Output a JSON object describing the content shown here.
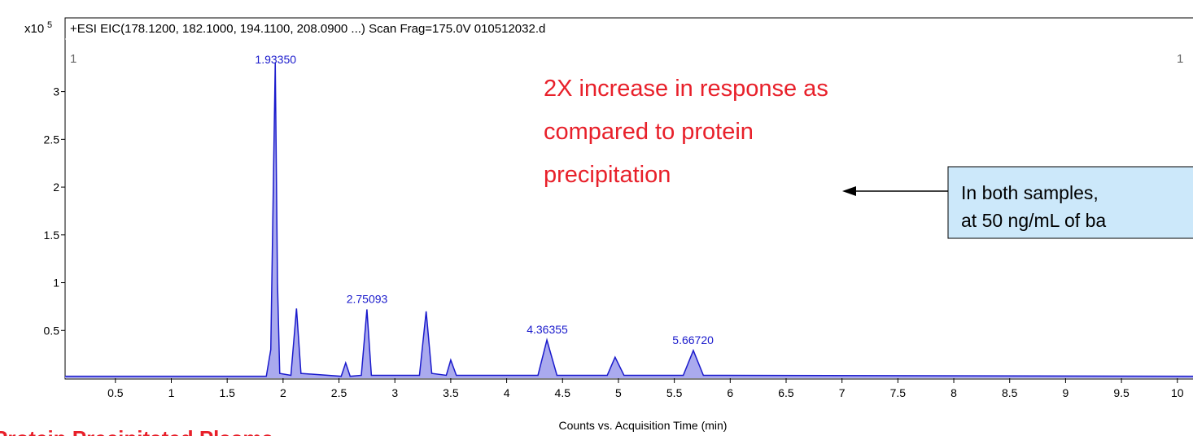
{
  "chart_data": {
    "type": "line",
    "header": "+ESI EIC(178.1200, 182.1000, 194.1100, 208.0900 ...) Scan Frag=175.0V 010512032.d",
    "y_multiplier": "x10",
    "y_exponent": "5",
    "panel_marks": [
      "1",
      "1"
    ],
    "xlabel": "Counts vs. Acquisition Time (min)",
    "x": [
      0.05,
      1.0,
      1.85,
      1.89,
      1.91,
      1.93,
      1.95,
      1.97,
      2.07,
      2.12,
      2.16,
      2.52,
      2.56,
      2.6,
      2.7,
      2.75,
      2.79,
      3.22,
      3.28,
      3.33,
      3.46,
      3.5,
      3.55,
      4.28,
      4.36,
      4.45,
      4.9,
      4.97,
      5.05,
      5.58,
      5.67,
      5.76,
      10.14
    ],
    "series": [
      {
        "name": "EIC",
        "color": "#1a1acc",
        "fill": "#aaaaee",
        "values": [
          0.02,
          0.02,
          0.02,
          0.3,
          1.8,
          3.3,
          1.0,
          0.05,
          0.03,
          0.73,
          0.05,
          0.02,
          0.16,
          0.02,
          0.03,
          0.72,
          0.03,
          0.03,
          0.7,
          0.05,
          0.03,
          0.19,
          0.03,
          0.03,
          0.4,
          0.03,
          0.03,
          0.22,
          0.03,
          0.03,
          0.29,
          0.03,
          0.02
        ]
      }
    ],
    "peak_labels": [
      {
        "value": 1.9335,
        "label": "1.93350"
      },
      {
        "value": 2.75093,
        "label": "2.75093"
      },
      {
        "value": 4.36355,
        "label": "4.36355"
      },
      {
        "value": 5.6672,
        "label": "5.66720"
      }
    ],
    "xlim": [
      0.05,
      10.14
    ],
    "xticks": [
      0.5,
      1,
      1.5,
      2,
      2.5,
      3,
      3.5,
      4,
      4.5,
      5,
      5.5,
      6,
      6.5,
      7,
      7.5,
      8,
      8.5,
      9,
      9.5,
      10
    ],
    "ylim": [
      0,
      3.55
    ],
    "yticks": [
      0.5,
      1,
      1.5,
      2,
      2.5,
      3
    ],
    "annotation": [
      "2X increase in response as",
      "compared to protein",
      "precipitation"
    ],
    "callout": [
      "In both samples,",
      "at 50 ng/mL of ba"
    ],
    "sample_label": "Protein Precipitated Plasma"
  }
}
